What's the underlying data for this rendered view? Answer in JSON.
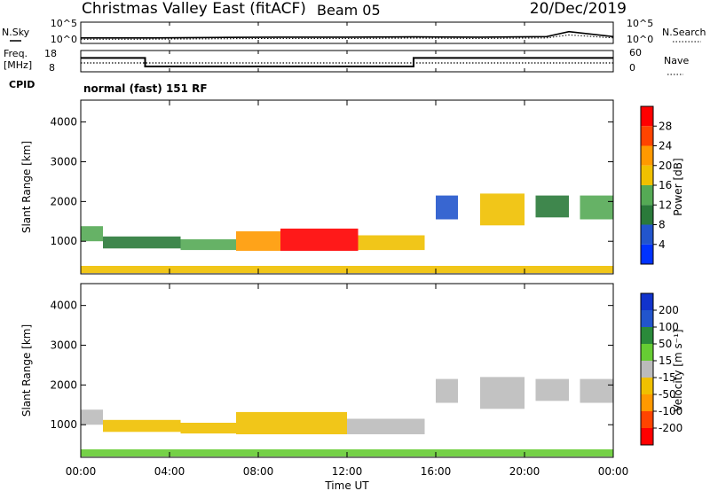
{
  "header": {
    "station": "Christmas Valley East (fitACF)",
    "beam": "Beam 05",
    "date": "20/Dec/2019"
  },
  "noise_panel": {
    "left_label": "N.Sky",
    "right_label": "N.Search",
    "left_ticks": [
      "10^5",
      "10^0"
    ],
    "right_ticks": [
      "10^5",
      "10^0"
    ]
  },
  "freq_panel": {
    "left_label_line1": "Freq.",
    "left_label_line2": "[MHz]",
    "right_label": "Nave",
    "left_ticks": [
      "18",
      "8"
    ],
    "right_ticks": [
      "60",
      "0"
    ],
    "cpid_label": "CPID",
    "cpid_text": "normal (fast) 151 RF"
  },
  "time_axis": {
    "label": "Time UT",
    "ticks": [
      "00:00",
      "04:00",
      "08:00",
      "12:00",
      "16:00",
      "20:00",
      "00:00"
    ]
  },
  "power_colorbar": {
    "label": "Power [dB]",
    "ticks": [
      "28",
      "24",
      "20",
      "16",
      "12",
      "8",
      "4"
    ],
    "colors": [
      "#0033ff",
      "#2255cc",
      "#2a7a3a",
      "#55aa55",
      "#f0c000",
      "#ff9900",
      "#ff4400",
      "#ff0000"
    ]
  },
  "velocity_colorbar": {
    "label": "Velocity [m s⁻¹]",
    "ticks": [
      "200",
      "100",
      "50",
      "15",
      "-15",
      "-50",
      "-100",
      "-200"
    ],
    "colors": [
      "#ff0000",
      "#ff4400",
      "#ff9900",
      "#f0c000",
      "#bbbbbb",
      "#66cc33",
      "#2a8a3a",
      "#2255cc",
      "#1133cc"
    ]
  },
  "chart_data": [
    {
      "type": "line",
      "name": "noise",
      "x": [
        0,
        3,
        6,
        9,
        12,
        15,
        18,
        21,
        22,
        24
      ],
      "n_sky": [
        20,
        20,
        25,
        30,
        30,
        35,
        30,
        40,
        600,
        40
      ],
      "n_search": [
        10,
        10,
        12,
        15,
        15,
        18,
        15,
        20,
        100,
        20
      ],
      "ylim": [
        1,
        100000
      ],
      "yscale": "log"
    },
    {
      "type": "line",
      "name": "frequency",
      "x": [
        0,
        2.9,
        2.9,
        15.0,
        15.0,
        24
      ],
      "freq_mhz": [
        14.5,
        14.5,
        10.5,
        10.5,
        14.5,
        14.5
      ],
      "nave": [
        25,
        25,
        25,
        25,
        25,
        25
      ],
      "ylim": [
        8,
        18
      ]
    },
    {
      "type": "heatmap",
      "name": "power",
      "xlabel": "Time UT",
      "ylabel": "Slant Range [km]",
      "xlim": [
        0,
        24
      ],
      "ylim": [
        180,
        4550
      ],
      "y_ticks": [
        1000,
        2000,
        3000,
        4000
      ],
      "regions": [
        {
          "t0": 0.0,
          "t1": 1.0,
          "r0": 1000,
          "r1": 1380,
          "level": 14
        },
        {
          "t0": 1.0,
          "t1": 4.5,
          "r0": 820,
          "r1": 1120,
          "level": 10
        },
        {
          "t0": 4.5,
          "t1": 7.0,
          "r0": 780,
          "r1": 1050,
          "level": 12
        },
        {
          "t0": 7.0,
          "t1": 9.0,
          "r0": 760,
          "r1": 1250,
          "level": 20
        },
        {
          "t0": 9.0,
          "t1": 12.5,
          "r0": 760,
          "r1": 1320,
          "level": 28
        },
        {
          "t0": 12.5,
          "t1": 15.5,
          "r0": 780,
          "r1": 1150,
          "level": 18
        },
        {
          "t0": 16.0,
          "t1": 17.0,
          "r0": 1550,
          "r1": 2150,
          "level": 6
        },
        {
          "t0": 18.0,
          "t1": 20.0,
          "r0": 1400,
          "r1": 2200,
          "level": 16
        },
        {
          "t0": 20.5,
          "t1": 22.0,
          "r0": 1600,
          "r1": 2150,
          "level": 8
        },
        {
          "t0": 22.5,
          "t1": 24.0,
          "r0": 1550,
          "r1": 2150,
          "level": 12
        },
        {
          "t0": 0.0,
          "t1": 24.0,
          "r0": 200,
          "r1": 380,
          "level": 16
        }
      ]
    },
    {
      "type": "heatmap",
      "name": "velocity",
      "xlabel": "Time UT",
      "ylabel": "Slant Range [km]",
      "xlim": [
        0,
        24
      ],
      "ylim": [
        180,
        4550
      ],
      "y_ticks": [
        1000,
        2000,
        3000,
        4000
      ],
      "regions": [
        {
          "t0": 0.0,
          "t1": 1.0,
          "r0": 1000,
          "r1": 1380,
          "level": -15
        },
        {
          "t0": 1.0,
          "t1": 4.5,
          "r0": 820,
          "r1": 1120,
          "level": -30
        },
        {
          "t0": 4.5,
          "t1": 7.0,
          "r0": 780,
          "r1": 1050,
          "level": -30
        },
        {
          "t0": 7.0,
          "t1": 12.0,
          "r0": 760,
          "r1": 1320,
          "level": -40
        },
        {
          "t0": 12.0,
          "t1": 15.5,
          "r0": 760,
          "r1": 1150,
          "level": 5
        },
        {
          "t0": 16.0,
          "t1": 17.0,
          "r0": 1550,
          "r1": 2150,
          "level": 0
        },
        {
          "t0": 18.0,
          "t1": 20.0,
          "r0": 1400,
          "r1": 2200,
          "level": 0
        },
        {
          "t0": 20.5,
          "t1": 22.0,
          "r0": 1600,
          "r1": 2150,
          "level": 0
        },
        {
          "t0": 22.5,
          "t1": 24.0,
          "r0": 1550,
          "r1": 2150,
          "level": 0
        },
        {
          "t0": 0.0,
          "t1": 24.0,
          "r0": 200,
          "r1": 380,
          "level": 20
        }
      ]
    }
  ]
}
